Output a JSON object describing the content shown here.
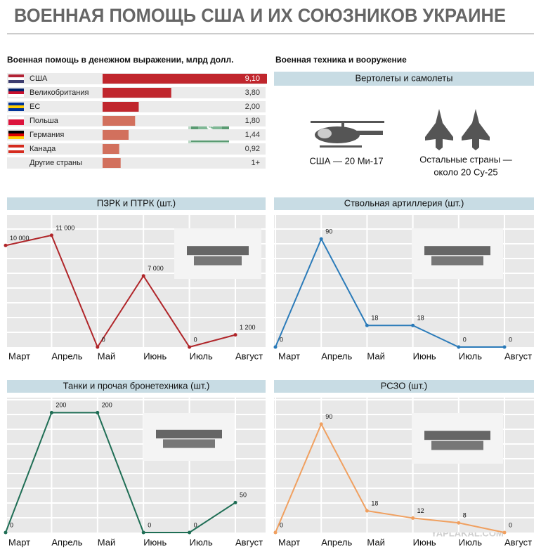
{
  "title": "ВОЕННАЯ ПОМОЩЬ США И ИХ СОЮЗНИКОВ УКРАИНЕ",
  "equipment": {
    "title": "Военная техника и вооружение",
    "subtitle": "Вертолеты и самолеты",
    "captions": [
      "США — 20 Ми-17",
      "Остальные страны —",
      "около 20 Су-25"
    ]
  },
  "watermark": "YAPLAKAL.COM",
  "chart_data": [
    {
      "type": "bar",
      "orientation": "horizontal",
      "title": "Военная помощь в денежном выражении, млрд долл.",
      "categories": [
        "США",
        "Великобритания",
        "ЕС",
        "Польша",
        "Германия",
        "Канада",
        "Другие страны"
      ],
      "values": [
        9.1,
        3.8,
        2.0,
        1.8,
        1.44,
        0.92,
        1
      ],
      "value_labels": [
        "9,10",
        "3,80",
        "2,00",
        "1,80",
        "1,44",
        "0,92",
        "1+"
      ],
      "colors": [
        "#c0262d",
        "#c0262d",
        "#c0262d",
        "#d2705d",
        "#d2705d",
        "#d2705d",
        "#d2705d"
      ]
    },
    {
      "type": "line",
      "title": "ПЗРК и ПТРК (шт.)",
      "categories": [
        "Март",
        "Апрель",
        "Май",
        "Июнь",
        "Июль",
        "Август"
      ],
      "values": [
        10000,
        11000,
        0,
        7000,
        0,
        1200
      ],
      "value_labels": [
        "10 000",
        "11 000",
        "0",
        "7 000",
        "0",
        "1 200"
      ],
      "color": "#b0262a",
      "ylim": [
        0,
        13000
      ]
    },
    {
      "type": "line",
      "title": "Ствольная артиллерия (шт.)",
      "categories": [
        "Март",
        "Апрель",
        "Май",
        "Июнь",
        "Июль",
        "Август"
      ],
      "values": [
        0,
        90,
        18,
        18,
        0,
        0
      ],
      "color": "#2b7bb9",
      "ylim": [
        0,
        110
      ]
    },
    {
      "type": "line",
      "title": "Танки и прочая бронетехника (шт.)",
      "categories": [
        "Март",
        "Апрель",
        "Май",
        "Июнь",
        "Июль",
        "Август"
      ],
      "values": [
        0,
        200,
        200,
        0,
        0,
        50
      ],
      "color": "#1f6e55",
      "ylim": [
        0,
        225
      ]
    },
    {
      "type": "line",
      "title": "РСЗО (шт.)",
      "categories": [
        "Март",
        "Апрель",
        "Май",
        "Июнь",
        "Июль",
        "Август"
      ],
      "values": [
        0,
        90,
        18,
        12,
        8,
        0
      ],
      "color": "#f0a060",
      "ylim": [
        0,
        112
      ]
    }
  ]
}
